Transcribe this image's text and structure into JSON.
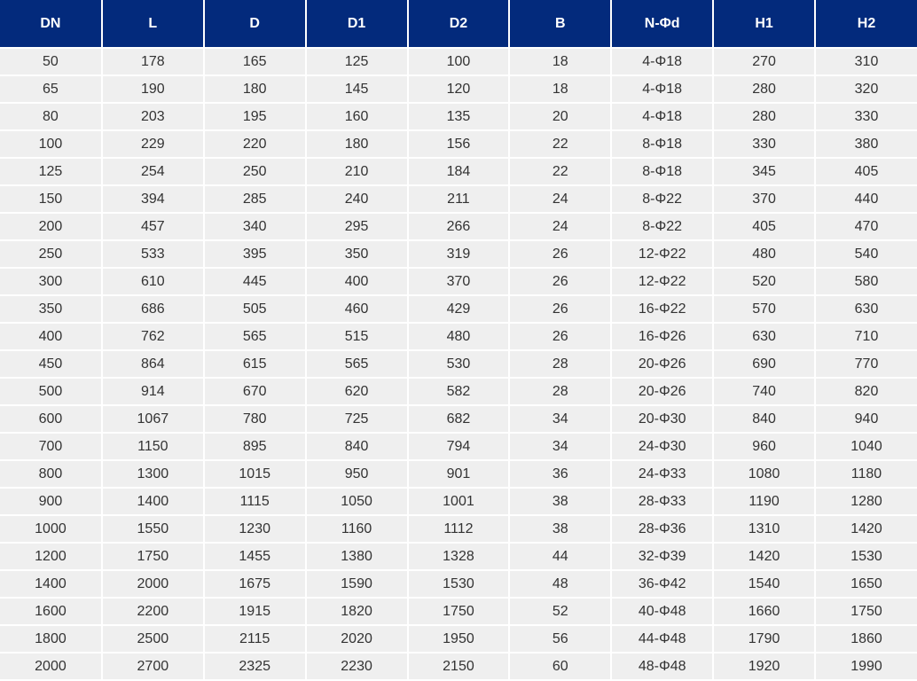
{
  "table": {
    "headers": [
      "DN",
      "L",
      "D",
      "D1",
      "D2",
      "B",
      "N-Φd",
      "H1",
      "H2"
    ],
    "rows": [
      [
        "50",
        "178",
        "165",
        "125",
        "100",
        "18",
        "4-Φ18",
        "270",
        "310"
      ],
      [
        "65",
        "190",
        "180",
        "145",
        "120",
        "18",
        "4-Φ18",
        "280",
        "320"
      ],
      [
        "80",
        "203",
        "195",
        "160",
        "135",
        "20",
        "4-Φ18",
        "280",
        "330"
      ],
      [
        "100",
        "229",
        "220",
        "180",
        "156",
        "22",
        "8-Φ18",
        "330",
        "380"
      ],
      [
        "125",
        "254",
        "250",
        "210",
        "184",
        "22",
        "8-Φ18",
        "345",
        "405"
      ],
      [
        "150",
        "394",
        "285",
        "240",
        "211",
        "24",
        "8-Φ22",
        "370",
        "440"
      ],
      [
        "200",
        "457",
        "340",
        "295",
        "266",
        "24",
        "8-Φ22",
        "405",
        "470"
      ],
      [
        "250",
        "533",
        "395",
        "350",
        "319",
        "26",
        "12-Φ22",
        "480",
        "540"
      ],
      [
        "300",
        "610",
        "445",
        "400",
        "370",
        "26",
        "12-Φ22",
        "520",
        "580"
      ],
      [
        "350",
        "686",
        "505",
        "460",
        "429",
        "26",
        "16-Φ22",
        "570",
        "630"
      ],
      [
        "400",
        "762",
        "565",
        "515",
        "480",
        "26",
        "16-Φ26",
        "630",
        "710"
      ],
      [
        "450",
        "864",
        "615",
        "565",
        "530",
        "28",
        "20-Φ26",
        "690",
        "770"
      ],
      [
        "500",
        "914",
        "670",
        "620",
        "582",
        "28",
        "20-Φ26",
        "740",
        "820"
      ],
      [
        "600",
        "1067",
        "780",
        "725",
        "682",
        "34",
        "20-Φ30",
        "840",
        "940"
      ],
      [
        "700",
        "1150",
        "895",
        "840",
        "794",
        "34",
        "24-Φ30",
        "960",
        "1040"
      ],
      [
        "800",
        "1300",
        "1015",
        "950",
        "901",
        "36",
        "24-Φ33",
        "1080",
        "1180"
      ],
      [
        "900",
        "1400",
        "1115",
        "1050",
        "1001",
        "38",
        "28-Φ33",
        "1190",
        "1280"
      ],
      [
        "1000",
        "1550",
        "1230",
        "1160",
        "1112",
        "38",
        "28-Φ36",
        "1310",
        "1420"
      ],
      [
        "1200",
        "1750",
        "1455",
        "1380",
        "1328",
        "44",
        "32-Φ39",
        "1420",
        "1530"
      ],
      [
        "1400",
        "2000",
        "1675",
        "1590",
        "1530",
        "48",
        "36-Φ42",
        "1540",
        "1650"
      ],
      [
        "1600",
        "2200",
        "1915",
        "1820",
        "1750",
        "52",
        "40-Φ48",
        "1660",
        "1750"
      ],
      [
        "1800",
        "2500",
        "2115",
        "2020",
        "1950",
        "56",
        "44-Φ48",
        "1790",
        "1860"
      ],
      [
        "2000",
        "2700",
        "2325",
        "2230",
        "2150",
        "60",
        "48-Φ48",
        "1920",
        "1990"
      ]
    ]
  },
  "colors": {
    "header_bg": "#032a7c",
    "header_text": "#ffffff",
    "cell_bg": "#efefef",
    "cell_text": "#333333"
  }
}
